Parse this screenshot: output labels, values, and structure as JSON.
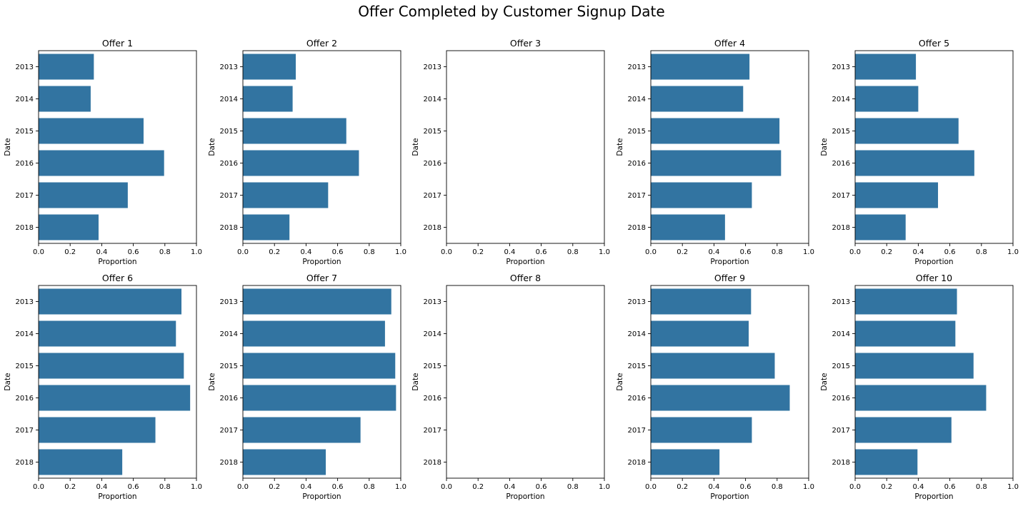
{
  "title": "Offer Completed by Customer Signup Date",
  "chart_data": [
    {
      "type": "bar",
      "title": "Offer 1",
      "categories": [
        "2013",
        "2014",
        "2015",
        "2016",
        "2017",
        "2018"
      ],
      "values": [
        0.35,
        0.33,
        0.665,
        0.795,
        0.565,
        0.38
      ],
      "xlabel": "Proportion",
      "ylabel": "Date",
      "xlim": [
        0,
        1
      ],
      "xticks": [
        "0.0",
        "0.2",
        "0.4",
        "0.6",
        "0.8",
        "1.0"
      ]
    },
    {
      "type": "bar",
      "title": "Offer 2",
      "categories": [
        "2013",
        "2014",
        "2015",
        "2016",
        "2017",
        "2018"
      ],
      "values": [
        0.335,
        0.315,
        0.655,
        0.735,
        0.54,
        0.295
      ],
      "xlabel": "Proportion",
      "ylabel": "Date",
      "xlim": [
        0,
        1
      ],
      "xticks": [
        "0.0",
        "0.2",
        "0.4",
        "0.6",
        "0.8",
        "1.0"
      ]
    },
    {
      "type": "bar",
      "title": "Offer 3",
      "categories": [
        "2013",
        "2014",
        "2015",
        "2016",
        "2017",
        "2018"
      ],
      "values": [
        0,
        0,
        0,
        0,
        0,
        0
      ],
      "xlabel": "Proportion",
      "ylabel": "Date",
      "xlim": [
        0,
        1
      ],
      "xticks": [
        "0.0",
        "0.2",
        "0.4",
        "0.6",
        "0.8",
        "1.0"
      ]
    },
    {
      "type": "bar",
      "title": "Offer 4",
      "categories": [
        "2013",
        "2014",
        "2015",
        "2016",
        "2017",
        "2018"
      ],
      "values": [
        0.625,
        0.585,
        0.815,
        0.825,
        0.64,
        0.47
      ],
      "xlabel": "Proportion",
      "ylabel": "Date",
      "xlim": [
        0,
        1
      ],
      "xticks": [
        "0.0",
        "0.2",
        "0.4",
        "0.6",
        "0.8",
        "1.0"
      ]
    },
    {
      "type": "bar",
      "title": "Offer 5",
      "categories": [
        "2013",
        "2014",
        "2015",
        "2016",
        "2017",
        "2018"
      ],
      "values": [
        0.385,
        0.4,
        0.655,
        0.755,
        0.525,
        0.32
      ],
      "xlabel": "Proportion",
      "ylabel": "Date",
      "xlim": [
        0,
        1
      ],
      "xticks": [
        "0.0",
        "0.2",
        "0.4",
        "0.6",
        "0.8",
        "1.0"
      ]
    },
    {
      "type": "bar",
      "title": "Offer 6",
      "categories": [
        "2013",
        "2014",
        "2015",
        "2016",
        "2017",
        "2018"
      ],
      "values": [
        0.905,
        0.87,
        0.92,
        0.96,
        0.74,
        0.53
      ],
      "xlabel": "Proportion",
      "ylabel": "Date",
      "xlim": [
        0,
        1
      ],
      "xticks": [
        "0.0",
        "0.2",
        "0.4",
        "0.6",
        "0.8",
        "1.0"
      ]
    },
    {
      "type": "bar",
      "title": "Offer 7",
      "categories": [
        "2013",
        "2014",
        "2015",
        "2016",
        "2017",
        "2018"
      ],
      "values": [
        0.94,
        0.9,
        0.965,
        0.97,
        0.745,
        0.525
      ],
      "xlabel": "Proportion",
      "ylabel": "Date",
      "xlim": [
        0,
        1
      ],
      "xticks": [
        "0.0",
        "0.2",
        "0.4",
        "0.6",
        "0.8",
        "1.0"
      ]
    },
    {
      "type": "bar",
      "title": "Offer 8",
      "categories": [
        "2013",
        "2014",
        "2015",
        "2016",
        "2017",
        "2018"
      ],
      "values": [
        0,
        0,
        0,
        0,
        0,
        0
      ],
      "xlabel": "Proportion",
      "ylabel": "Date",
      "xlim": [
        0,
        1
      ],
      "xticks": [
        "0.0",
        "0.2",
        "0.4",
        "0.6",
        "0.8",
        "1.0"
      ]
    },
    {
      "type": "bar",
      "title": "Offer 9",
      "categories": [
        "2013",
        "2014",
        "2015",
        "2016",
        "2017",
        "2018"
      ],
      "values": [
        0.635,
        0.62,
        0.785,
        0.88,
        0.64,
        0.435
      ],
      "xlabel": "Proportion",
      "ylabel": "Date",
      "xlim": [
        0,
        1
      ],
      "xticks": [
        "0.0",
        "0.2",
        "0.4",
        "0.6",
        "0.8",
        "1.0"
      ]
    },
    {
      "type": "bar",
      "title": "Offer 10",
      "categories": [
        "2013",
        "2014",
        "2015",
        "2016",
        "2017",
        "2018"
      ],
      "values": [
        0.645,
        0.635,
        0.75,
        0.83,
        0.61,
        0.395
      ],
      "xlabel": "Proportion",
      "ylabel": "Date",
      "xlim": [
        0,
        1
      ],
      "xticks": [
        "0.0",
        "0.2",
        "0.4",
        "0.6",
        "0.8",
        "1.0"
      ]
    }
  ],
  "colors": {
    "bar": "#3274a1",
    "axis": "#000000",
    "background": "#ffffff"
  }
}
